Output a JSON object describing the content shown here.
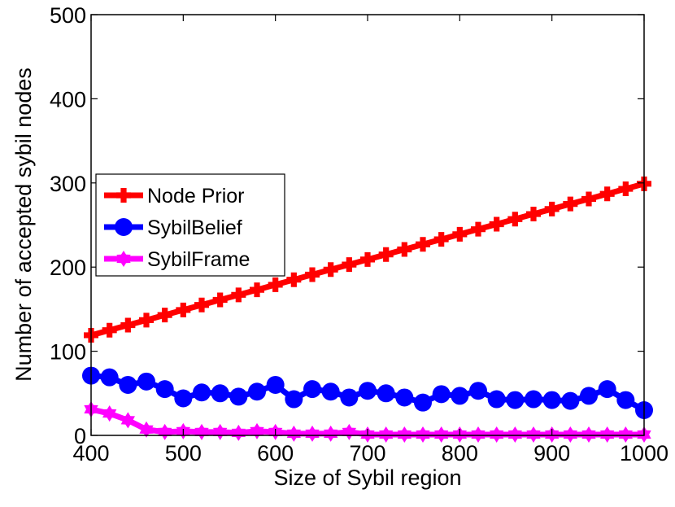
{
  "chart_data": {
    "type": "line",
    "title": "",
    "xlabel": "Size of Sybil region",
    "ylabel": "Number of accepted sybil nodes",
    "xlim": [
      400,
      1000
    ],
    "ylim": [
      0,
      500
    ],
    "xticks": [
      400,
      500,
      600,
      700,
      800,
      900,
      1000
    ],
    "yticks": [
      0,
      100,
      200,
      300,
      400,
      500
    ],
    "xtick_labels": [
      "400",
      "500",
      "600",
      "700",
      "800",
      "900",
      "1000"
    ],
    "ytick_labels": [
      "0",
      "100",
      "200",
      "300",
      "400",
      "500"
    ],
    "grid": false,
    "legend_position": "center-left",
    "x": [
      400,
      420,
      440,
      460,
      480,
      500,
      520,
      540,
      560,
      580,
      600,
      620,
      640,
      660,
      680,
      700,
      720,
      740,
      760,
      780,
      800,
      820,
      840,
      860,
      880,
      900,
      920,
      940,
      960,
      980,
      1000
    ],
    "series": [
      {
        "name": "Node Prior",
        "color": "#ff0000",
        "marker": "plus",
        "values": [
          119,
          125,
          131,
          137,
          143,
          149,
          155,
          161,
          167,
          173,
          179,
          185,
          191,
          197,
          203,
          209,
          215,
          221,
          227,
          233,
          239,
          245,
          251,
          257,
          263,
          269,
          275,
          281,
          287,
          293,
          299
        ]
      },
      {
        "name": "SybilBelief",
        "color": "#0000ff",
        "marker": "circle",
        "values": [
          71,
          69,
          60,
          64,
          55,
          44,
          51,
          50,
          46,
          52,
          60,
          43,
          55,
          52,
          45,
          53,
          50,
          45,
          39,
          49,
          47,
          53,
          43,
          42,
          43,
          42,
          41,
          47,
          55,
          42,
          30
        ]
      },
      {
        "name": "SybilFrame",
        "color": "#ff00ff",
        "marker": "hexagram",
        "values": [
          31,
          26,
          18,
          7,
          4,
          5,
          4,
          4,
          3,
          5,
          4,
          2,
          2,
          2,
          4,
          1,
          1,
          1,
          1,
          1,
          1,
          1,
          1,
          1,
          1,
          1,
          1,
          1,
          1,
          1,
          1
        ]
      }
    ]
  }
}
